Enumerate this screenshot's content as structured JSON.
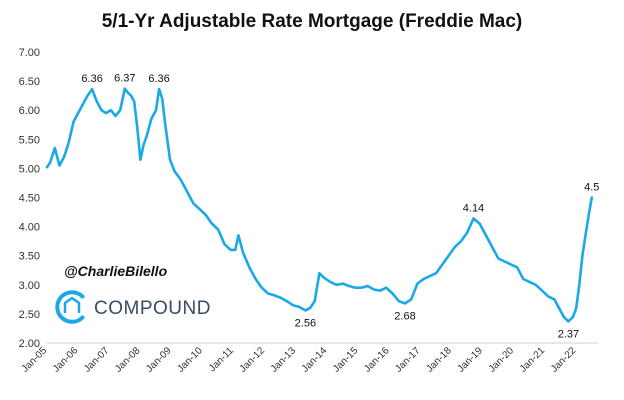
{
  "chart_data": {
    "type": "line",
    "title": "5/1-Yr Adjustable Rate Mortgage (Freddie Mac)",
    "xlabel": "",
    "ylabel": "",
    "ylim": [
      2.0,
      7.0
    ],
    "yticks": [
      "2.00",
      "2.50",
      "3.00",
      "3.50",
      "4.00",
      "4.50",
      "5.00",
      "5.50",
      "6.00",
      "6.50",
      "7.00"
    ],
    "xticks": [
      "Jan-05",
      "Jan-06",
      "Jan-07",
      "Jan-08",
      "Jan-09",
      "Jan-10",
      "Jan-11",
      "Jan-12",
      "Jan-13",
      "Jan-14",
      "Jan-15",
      "Jan-16",
      "Jan-17",
      "Jan-18",
      "Jan-19",
      "Jan-20",
      "Jan-21",
      "Jan-22"
    ],
    "xlim": [
      2005.0,
      2022.7
    ],
    "grid": false,
    "line_color": "#1ba9e6",
    "series": [
      {
        "x": [
          2005.0,
          2005.1,
          2005.25,
          2005.4,
          2005.55,
          2005.7,
          2005.85,
          2006.0,
          2006.15,
          2006.3,
          2006.45,
          2006.6,
          2006.75,
          2006.9,
          2007.05,
          2007.2,
          2007.35,
          2007.5,
          2007.6,
          2007.7,
          2007.8,
          2007.9,
          2008.0,
          2008.1,
          2008.2,
          2008.35,
          2008.5,
          2008.6,
          2008.7,
          2008.8,
          2008.95,
          2009.1,
          2009.3,
          2009.5,
          2009.7,
          2009.9,
          2010.1,
          2010.3,
          2010.5,
          2010.7,
          2010.9,
          2011.05,
          2011.15,
          2011.3,
          2011.5,
          2011.7,
          2011.9,
          2012.1,
          2012.3,
          2012.5,
          2012.7,
          2012.9,
          2013.1,
          2013.3,
          2013.45,
          2013.6,
          2013.75,
          2013.9,
          2014.1,
          2014.3,
          2014.5,
          2014.7,
          2014.9,
          2015.1,
          2015.3,
          2015.5,
          2015.7,
          2015.9,
          2016.1,
          2016.3,
          2016.5,
          2016.7,
          2016.9,
          2017.1,
          2017.3,
          2017.5,
          2017.7,
          2017.9,
          2018.1,
          2018.3,
          2018.5,
          2018.7,
          2018.9,
          2019.1,
          2019.3,
          2019.5,
          2019.7,
          2019.9,
          2020.1,
          2020.3,
          2020.5,
          2020.7,
          2020.9,
          2021.1,
          2021.3,
          2021.5,
          2021.6,
          2021.75,
          2021.9,
          2022.0,
          2022.1,
          2022.2,
          2022.3,
          2022.4,
          2022.5
        ],
        "values": [
          5.02,
          5.1,
          5.35,
          5.05,
          5.2,
          5.45,
          5.8,
          5.95,
          6.1,
          6.25,
          6.36,
          6.15,
          6.0,
          5.95,
          6.0,
          5.9,
          6.0,
          6.37,
          6.3,
          6.25,
          6.15,
          5.7,
          5.15,
          5.4,
          5.55,
          5.85,
          6.0,
          6.36,
          6.2,
          5.75,
          5.15,
          4.95,
          4.8,
          4.6,
          4.4,
          4.3,
          4.2,
          4.05,
          3.95,
          3.7,
          3.6,
          3.6,
          3.85,
          3.55,
          3.3,
          3.1,
          2.95,
          2.85,
          2.82,
          2.78,
          2.72,
          2.65,
          2.62,
          2.56,
          2.6,
          2.72,
          3.2,
          3.12,
          3.05,
          3.0,
          3.02,
          2.98,
          2.95,
          2.95,
          2.98,
          2.92,
          2.9,
          2.95,
          2.85,
          2.72,
          2.68,
          2.75,
          3.02,
          3.1,
          3.15,
          3.2,
          3.35,
          3.5,
          3.65,
          3.75,
          3.9,
          4.14,
          4.05,
          3.85,
          3.65,
          3.45,
          3.4,
          3.35,
          3.3,
          3.1,
          3.05,
          3.0,
          2.9,
          2.8,
          2.75,
          2.55,
          2.45,
          2.37,
          2.45,
          2.6,
          3.0,
          3.5,
          3.85,
          4.2,
          4.5
        ]
      }
    ],
    "annotations": [
      {
        "text": "6.36",
        "x": 2006.45,
        "y": 6.36
      },
      {
        "text": "6.37",
        "x": 2007.5,
        "y": 6.37
      },
      {
        "text": "6.36",
        "x": 2008.6,
        "y": 6.36
      },
      {
        "text": "2.56",
        "x": 2013.3,
        "y": 2.56
      },
      {
        "text": "2.68",
        "x": 2016.5,
        "y": 2.68
      },
      {
        "text": "4.14",
        "x": 2018.7,
        "y": 4.14
      },
      {
        "text": "2.37",
        "x": 2021.75,
        "y": 2.37
      },
      {
        "text": "4.5",
        "x": 2022.5,
        "y": 4.5
      }
    ]
  },
  "watermark": {
    "handle": "@CharlieBilello",
    "brand": "COMPOUND",
    "logo_icon": "compound-logo-icon",
    "brand_color": "#3b4b63",
    "logo_color": "#1ba9e6"
  }
}
